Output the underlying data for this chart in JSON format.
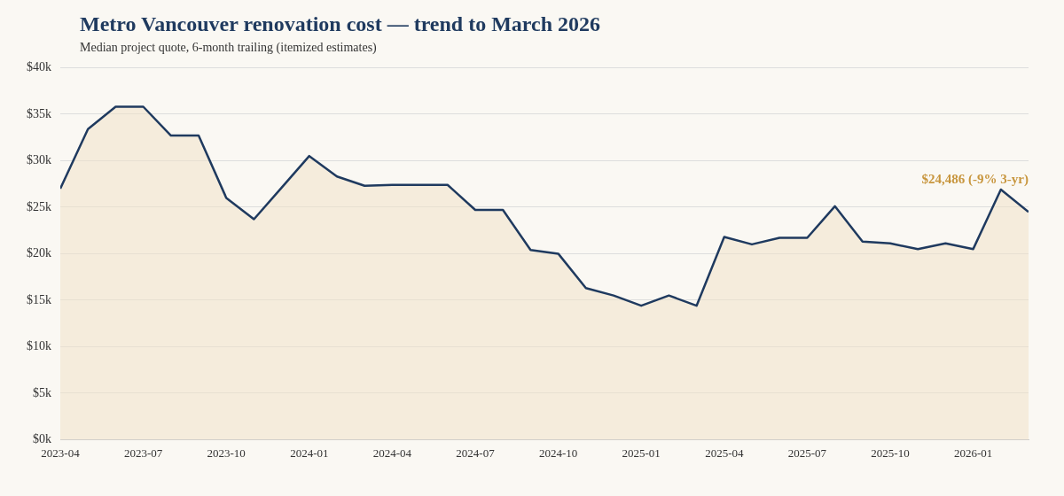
{
  "chart_data": {
    "type": "area",
    "title": "Metro Vancouver renovation cost — trend to March 2026",
    "subtitle": "Median project quote, 6-month trailing (itemized estimates)",
    "x": [
      "2023-04",
      "2023-05",
      "2023-06",
      "2023-07",
      "2023-08",
      "2023-09",
      "2023-10",
      "2023-11",
      "2023-12",
      "2024-01",
      "2024-02",
      "2024-03",
      "2024-04",
      "2024-05",
      "2024-06",
      "2024-07",
      "2024-08",
      "2024-09",
      "2024-10",
      "2024-11",
      "2024-12",
      "2025-01",
      "2025-02",
      "2025-03",
      "2025-04",
      "2025-05",
      "2025-06",
      "2025-07",
      "2025-08",
      "2025-09",
      "2025-10",
      "2025-11",
      "2025-12",
      "2026-01",
      "2026-02",
      "2026-03"
    ],
    "series": [
      {
        "color": "#1f3a5f",
        "values": [
          27000,
          33400,
          35800,
          35800,
          32700,
          32700,
          26000,
          23700,
          27100,
          30500,
          28300,
          27300,
          27400,
          27400,
          27400,
          24700,
          24700,
          20400,
          20000,
          16300,
          15500,
          14400,
          15500,
          14400,
          21800,
          21000,
          21700,
          21700,
          25100,
          21300,
          21100,
          20500,
          21100,
          20500,
          26900,
          24486
        ]
      }
    ],
    "xlim": [
      "2023-04",
      "2026-03"
    ],
    "xticks": [
      "2023-04",
      "2023-07",
      "2023-10",
      "2024-01",
      "2024-04",
      "2024-07",
      "2024-10",
      "2025-01",
      "2025-04",
      "2025-07",
      "2025-10",
      "2026-01"
    ],
    "ylim": [
      0,
      40000
    ],
    "yticks": [
      {
        "value": 0,
        "label": "$0k"
      },
      {
        "value": 5000,
        "label": "$5k"
      },
      {
        "value": 10000,
        "label": "$10k"
      },
      {
        "value": 15000,
        "label": "$15k"
      },
      {
        "value": 20000,
        "label": "$20k"
      },
      {
        "value": 25000,
        "label": "$25k"
      },
      {
        "value": 30000,
        "label": "$30k"
      },
      {
        "value": 35000,
        "label": "$35k"
      },
      {
        "value": 40000,
        "label": "$40k"
      }
    ],
    "grid": "y",
    "legend": false,
    "marker": "none",
    "line_style": "solid",
    "annotations": [
      {
        "text": "$24,486 (-9% 3-yr)",
        "x": "2026-03",
        "y": 24486
      }
    ]
  }
}
